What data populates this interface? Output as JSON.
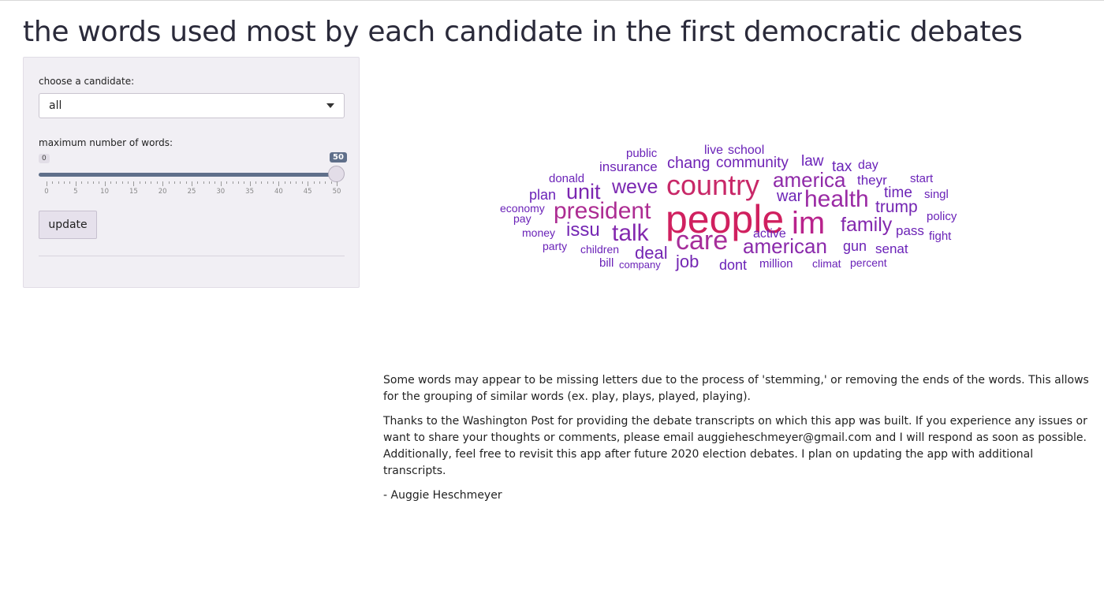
{
  "page": {
    "title": "the words used most by each candidate in the first democratic debates"
  },
  "sidebar": {
    "candidate_label": "choose a candidate:",
    "candidate_value": "all",
    "max_words_label": "maximum number of words:",
    "slider": {
      "min": 0,
      "max": 50,
      "value": 50,
      "min_badge": "0",
      "value_badge": "50",
      "tick_labels": [
        "0",
        "5",
        "10",
        "15",
        "20",
        "25",
        "30",
        "35",
        "40",
        "45",
        "50"
      ]
    },
    "update_label": "update"
  },
  "wordcloud": {
    "colors": {
      "high": "#d0205f",
      "mid": "#b3278a",
      "low": "#6a22b8"
    },
    "words": [
      {
        "text": "people",
        "color": "#d0205f"
      },
      {
        "text": "country",
        "color": "#c82868"
      },
      {
        "text": "im",
        "color": "#b8238c"
      },
      {
        "text": "care",
        "color": "#a62e9a"
      },
      {
        "text": "president",
        "color": "#ad2c92"
      },
      {
        "text": "health",
        "color": "#9a2aa4"
      },
      {
        "text": "america",
        "color": "#8f2aa8"
      },
      {
        "text": "american",
        "color": "#8a2aab"
      },
      {
        "text": "talk",
        "color": "#8328ae"
      },
      {
        "text": "family",
        "color": "#8328ae"
      },
      {
        "text": "unit",
        "color": "#7b27b1"
      },
      {
        "text": "weve",
        "color": "#7b27b1"
      },
      {
        "text": "issu",
        "color": "#7426b3"
      },
      {
        "text": "trump",
        "color": "#7426b3"
      },
      {
        "text": "job",
        "color": "#7426b3"
      },
      {
        "text": "deal",
        "color": "#7426b3"
      },
      {
        "text": "chang",
        "color": "#7024b5"
      },
      {
        "text": "community",
        "color": "#7024b5"
      },
      {
        "text": "insurance",
        "color": "#6c23b6"
      },
      {
        "text": "war",
        "color": "#6c23b6"
      },
      {
        "text": "time",
        "color": "#6c23b6"
      },
      {
        "text": "gun",
        "color": "#6c23b6"
      },
      {
        "text": "pass",
        "color": "#6c23b6"
      },
      {
        "text": "plan",
        "color": "#6a22b8"
      },
      {
        "text": "law",
        "color": "#6a22b8"
      },
      {
        "text": "tax",
        "color": "#6a22b8"
      },
      {
        "text": "theyr",
        "color": "#6a22b8"
      },
      {
        "text": "dont",
        "color": "#6a22b8"
      },
      {
        "text": "senat",
        "color": "#6a22b8"
      },
      {
        "text": "active",
        "color": "#6a22b8"
      },
      {
        "text": "live",
        "color": "#6a22b8"
      },
      {
        "text": "school",
        "color": "#6a22b8"
      },
      {
        "text": "public",
        "color": "#6a22b8"
      },
      {
        "text": "donald",
        "color": "#6a22b8"
      },
      {
        "text": "day",
        "color": "#6a22b8"
      },
      {
        "text": "start",
        "color": "#6a22b8"
      },
      {
        "text": "singl",
        "color": "#6a22b8"
      },
      {
        "text": "policy",
        "color": "#6a22b8"
      },
      {
        "text": "fight",
        "color": "#6a22b8"
      },
      {
        "text": "economy",
        "color": "#6a22b8"
      },
      {
        "text": "pay",
        "color": "#6a22b8"
      },
      {
        "text": "money",
        "color": "#6a22b8"
      },
      {
        "text": "party",
        "color": "#6a22b8"
      },
      {
        "text": "children",
        "color": "#6a22b8"
      },
      {
        "text": "bill",
        "color": "#6a22b8"
      },
      {
        "text": "company",
        "color": "#6a22b8"
      },
      {
        "text": "million",
        "color": "#6a22b8"
      },
      {
        "text": "climat",
        "color": "#6a22b8"
      },
      {
        "text": "percent",
        "color": "#6a22b8"
      }
    ]
  },
  "notes": {
    "p1": "Some words may appear to be missing letters due to the process of 'stemming,' or removing the ends of the words. This allows for the grouping of similar words (ex. play, plays, played, playing).",
    "p2": "Thanks to the Washington Post for providing the debate transcripts on which this app was built. If you experience any issues or want to share your thoughts or comments, please email auggieheschmeyer@gmail.com and I will respond as soon as possible. Additionally, feel free to revisit this app after future 2020 election debates. I plan on updating the app with additional transcripts.",
    "signature": "- Auggie Heschmeyer"
  }
}
